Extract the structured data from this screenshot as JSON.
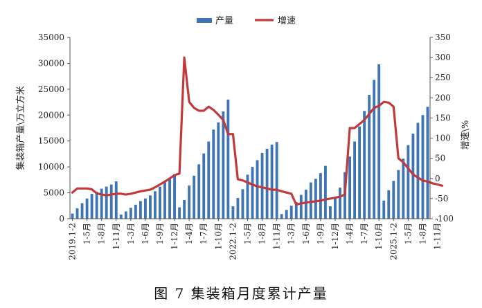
{
  "caption": "图 7  集装箱月度累计产量",
  "chart_data": {
    "type": "bar",
    "title": "",
    "legend": {
      "placement": "top-center",
      "entries": [
        "产量",
        "增速"
      ]
    },
    "colors": {
      "bar": "#3f74b5",
      "line": "#c0393b",
      "axis": "#555555"
    },
    "y_left": {
      "label": "集装箱产量\\万立方米",
      "min": 0,
      "max": 35000,
      "ticks": [
        "0",
        "5000",
        "10000",
        "15000",
        "20000",
        "25000",
        "30000",
        "35000"
      ]
    },
    "y_right": {
      "label": "增速\\%",
      "min": -100,
      "max": 350,
      "ticks": [
        "-100",
        "-50",
        "0",
        "50",
        "100",
        "150",
        "200",
        "250",
        "300",
        "350"
      ]
    },
    "x_tick_labels": [
      "2019.1-2",
      "1-5月",
      "1-8月",
      "1-11月",
      "1-3月",
      "1-6月",
      "1-9月",
      "1-12月",
      "1-4月",
      "1-7月",
      "1-10月",
      "2022.1-2",
      "1-5月",
      "1-8月",
      "1-11月",
      "1-3月",
      "1-6月",
      "1-9月",
      "1-12月",
      "1-4月",
      "1-7月",
      "1-10月",
      "2025.1-2",
      "1-5月",
      "1-8月",
      "1-11月"
    ],
    "series": [
      {
        "name": "产量",
        "type": "bar",
        "axis": "left",
        "values": [
          1000,
          2000,
          3000,
          3900,
          4800,
          5200,
          5800,
          6200,
          6600,
          7200,
          800,
          1400,
          2100,
          2700,
          3400,
          3900,
          4500,
          5300,
          6200,
          7000,
          7800,
          8600,
          2200,
          3600,
          6400,
          8300,
          10500,
          12600,
          14900,
          17200,
          18600,
          20700,
          23000,
          2400,
          4000,
          5700,
          8500,
          10000,
          11300,
          12700,
          13500,
          14300,
          14800,
          900,
          1700,
          2500,
          3200,
          4600,
          5600,
          7000,
          7700,
          8800,
          10200,
          2400,
          4000,
          6000,
          9000,
          12000,
          14900,
          17800,
          20800,
          23900,
          26800,
          29800,
          3500,
          5500,
          7300,
          9400,
          11600,
          14200,
          16400,
          18500,
          20000,
          21600
        ]
      },
      {
        "name": "增速",
        "type": "line",
        "axis": "right",
        "values": [
          -35,
          -25,
          -25,
          -25,
          -27,
          -37,
          -40,
          -42,
          -40,
          -38,
          -38,
          -40,
          -38,
          -35,
          -32,
          -30,
          -28,
          -22,
          -15,
          -8,
          0,
          8,
          12,
          300,
          190,
          175,
          168,
          168,
          178,
          170,
          158,
          145,
          110,
          110,
          -2,
          -5,
          -10,
          -15,
          -20,
          -22,
          -25,
          -28,
          -28,
          -32,
          -35,
          -38,
          -65,
          -62,
          -60,
          -58,
          -57,
          -55,
          -52,
          -50,
          -48,
          -45,
          -40,
          125,
          125,
          135,
          145,
          160,
          175,
          180,
          190,
          188,
          178,
          50,
          40,
          25,
          10,
          2,
          -5,
          -8,
          -12,
          -15,
          -18
        ]
      }
    ]
  }
}
